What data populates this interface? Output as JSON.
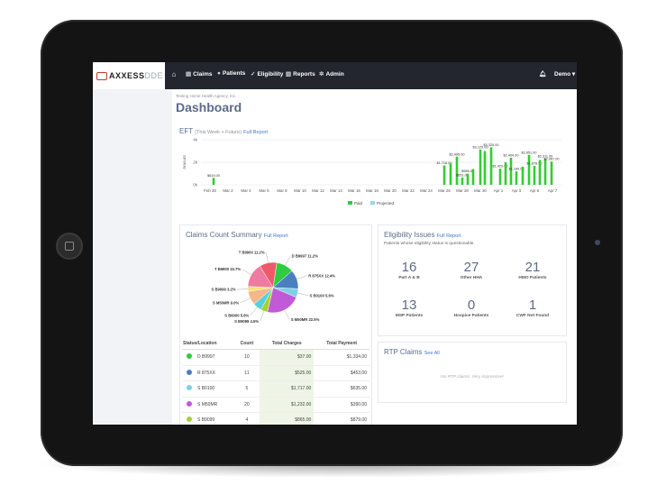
{
  "nav": {
    "logo_main": "AXXESS",
    "logo_suffix": "DDE",
    "items": [
      {
        "label": "Claims",
        "icon": "document-icon"
      },
      {
        "label": "Patients",
        "icon": "user-icon"
      },
      {
        "label": "Eligibility",
        "icon": "check-circle-icon"
      },
      {
        "label": "Reports",
        "icon": "bar-chart-icon"
      },
      {
        "label": "Admin",
        "icon": "gear-icon"
      }
    ],
    "user": "Demo"
  },
  "page": {
    "agency": "Testing Home Health Agency, Inc.",
    "title": "Dashboard"
  },
  "eft": {
    "title": "EFT",
    "subtitle": "(This Week + Future)",
    "link": "Full Report",
    "colors": {
      "paid": "#33cc33",
      "projected": "#99d6ee"
    }
  },
  "claims_summary": {
    "title": "Claims Count Summary",
    "link": "Full Report",
    "headers": [
      "Status/Location",
      "Count",
      "Total Charges",
      "Total Payment"
    ],
    "rows": [
      {
        "color": "#2ecc40",
        "location": "D B9997",
        "count": "10",
        "charges": "$37.00",
        "payment": "$1,334.00"
      },
      {
        "color": "#4a80bf",
        "location": "R 875XX",
        "count": "11",
        "charges": "$525.00",
        "payment": "$453.00"
      },
      {
        "color": "#7fcfe6",
        "location": "S B0100",
        "count": "5",
        "charges": "$1,717.00",
        "payment": "$635.00"
      },
      {
        "color": "#c05ad6",
        "location": "S M50MR",
        "count": "20",
        "charges": "$1,232.00",
        "payment": "$390.00"
      },
      {
        "color": "#a7cf3a",
        "location": "S B9099",
        "count": "4",
        "charges": "$865.00",
        "payment": "$879.00"
      },
      {
        "color": "#55d0dd",
        "location": "S B6000",
        "count": "5",
        "charges": "$29.00",
        "payment": "$1,254.00"
      }
    ]
  },
  "eligibility": {
    "title": "Eligibility Issues",
    "link": "Full Report",
    "subtitle": "Patients whose eligibility status is questionable.",
    "stats": [
      {
        "value": "16",
        "label": "Part A & B"
      },
      {
        "value": "27",
        "label": "Other HHA"
      },
      {
        "value": "21",
        "label": "HMO Patients"
      },
      {
        "value": "13",
        "label": "MSP Patients"
      },
      {
        "value": "0",
        "label": "Hospice Patients"
      },
      {
        "value": "1",
        "label": "CWF Not Found"
      }
    ]
  },
  "rtp": {
    "title": "RTP Claims",
    "link": "See All",
    "empty": "No RTP claims. Very impressive!"
  },
  "chart_data": [
    {
      "type": "bar",
      "ylabel": "Amount",
      "y_tick_labels": [
        "4k",
        "2k",
        "0k"
      ],
      "ylim": [
        0,
        4000
      ],
      "categories": [
        "Feb 28",
        "Mar 2",
        "Mar 4",
        "Mar 6",
        "Mar 8",
        "Mar 10",
        "Mar 12",
        "Mar 14",
        "Mar 16",
        "Mar 18",
        "Mar 20",
        "Mar 22",
        "Mar 24",
        "Mar 26",
        "Mar 28",
        "Mar 30",
        "Apr 1",
        "Apr 3",
        "Apr 5",
        "Apr 7"
      ],
      "legend": [
        "Paid",
        "Projected"
      ],
      "legend_position": "bottom",
      "series": [
        {
          "name": "Paid",
          "points": [
            {
              "x": 0.2,
              "y": 615,
              "label": "$615.00"
            },
            {
              "x": 13.0,
              "y": 1718,
              "label": "$1,718.00"
            },
            {
              "x": 13.35,
              "y": 1900,
              "label": ""
            },
            {
              "x": 13.7,
              "y": 2495,
              "label": "$2,495.00"
            },
            {
              "x": 14.0,
              "y": 651,
              "label": "$651.00"
            },
            {
              "x": 14.3,
              "y": 985,
              "label": "$985.00"
            },
            {
              "x": 14.6,
              "y": 1400,
              "label": ""
            },
            {
              "x": 15.0,
              "y": 3129,
              "label": "$3,129.00"
            },
            {
              "x": 15.25,
              "y": 3000,
              "label": ""
            },
            {
              "x": 15.6,
              "y": 3325,
              "label": "$3,325.00"
            },
            {
              "x": 16.1,
              "y": 1429,
              "label": "$1,429.00"
            },
            {
              "x": 16.4,
              "y": 2000,
              "label": ""
            },
            {
              "x": 16.7,
              "y": 2404,
              "label": "$2,404.00"
            },
            {
              "x": 17.0,
              "y": 1189,
              "label": "$1,189.00"
            },
            {
              "x": 17.35,
              "y": 1600,
              "label": ""
            },
            {
              "x": 17.7,
              "y": 2651,
              "label": "$2,651.00"
            },
            {
              "x": 18.0,
              "y": 1678,
              "label": "$1,678.00"
            },
            {
              "x": 18.3,
              "y": 2200,
              "label": ""
            },
            {
              "x": 18.6,
              "y": 2311,
              "label": "$2,311.00"
            },
            {
              "x": 18.95,
              "y": 2067,
              "label": "$2,067.00"
            }
          ]
        }
      ]
    },
    {
      "type": "pie",
      "slices": [
        {
          "label": "D B9997 11.2%",
          "value": 11.2,
          "color": "#2ecc40"
        },
        {
          "label": "R 875XX 12.4%",
          "value": 12.4,
          "color": "#4a80bf"
        },
        {
          "label": "S B0100 5.6%",
          "value": 5.6,
          "color": "#7fcfe6"
        },
        {
          "label": "S M50MR 22.5%",
          "value": 22.5,
          "color": "#c05ad6"
        },
        {
          "label": "S B9099 4.5%",
          "value": 4.5,
          "color": "#a7cf3a"
        },
        {
          "label": "S B6000 5.6%",
          "value": 5.6,
          "color": "#55d0dd"
        },
        {
          "label": "S M50MR 9.0%",
          "value": 9.0,
          "color": "#f7b58a"
        },
        {
          "label": "S B9099 3.2%",
          "value": 3.2,
          "color": "#f2e27a"
        },
        {
          "label": "T B9900 15.7%",
          "value": 15.7,
          "color": "#f07aa0"
        },
        {
          "label": "T B9900 11.2%",
          "value": 11.2,
          "color": "#ee5a6a"
        }
      ]
    }
  ]
}
